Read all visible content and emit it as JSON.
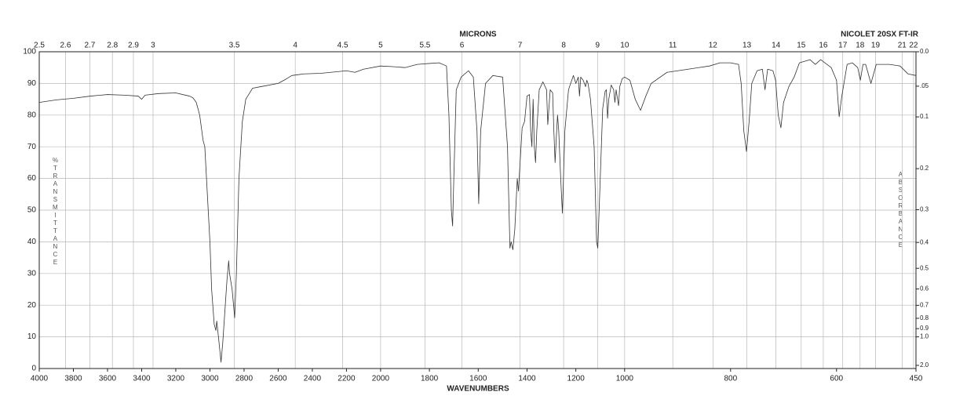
{
  "chart_data": {
    "type": "line",
    "title": "NICOLET 20SX FT-IR",
    "x_label": "WAVENUMBERS",
    "x2_label": "MICRONS",
    "y_label": "%TRANSMITTANCE",
    "y2_label": "ABSORBANCE",
    "color": "#333333",
    "grid": true,
    "xlim": [
      4000,
      450
    ],
    "x_scale_breaks": [
      2000,
      1000
    ],
    "xticks": [
      4000,
      3800,
      3600,
      3400,
      3200,
      3000,
      2800,
      2600,
      2400,
      2200,
      2000,
      1800,
      1600,
      1400,
      1200,
      1000,
      800,
      600,
      450
    ],
    "x2ticks": [
      2.5,
      2.6,
      2.7,
      2.8,
      2.9,
      3,
      3.5,
      4,
      4.5,
      5,
      5.5,
      6,
      7,
      8,
      9,
      10,
      11,
      12,
      13,
      14,
      15,
      16,
      17,
      18,
      19,
      21,
      22
    ],
    "x2_scale": "reciprocal",
    "ylim": [
      0,
      100
    ],
    "yticks": [
      0,
      10,
      20,
      30,
      40,
      50,
      60,
      70,
      80,
      90,
      100
    ],
    "y2_scale": "absorbance",
    "y2ticks": [
      {
        "value": 0,
        "label": "0.0"
      },
      {
        "value": 0.05,
        "label": ".05"
      },
      0.1,
      0.2,
      0.3,
      0.4,
      0.5,
      0.6,
      0.7,
      0.8,
      0.9,
      {
        "value": 1,
        "label": "1.0"
      },
      {
        "value": 2,
        "label": "2.0"
      }
    ],
    "x": [
      4000,
      3900,
      3800,
      3700,
      3600,
      3500,
      3420,
      3400,
      3380,
      3300,
      3200,
      3120,
      3100,
      3080,
      3060,
      3040,
      3030,
      3020,
      3000,
      2990,
      2975,
      2965,
      2960,
      2950,
      2935,
      2925,
      2910,
      2900,
      2890,
      2885,
      2870,
      2855,
      2845,
      2830,
      2810,
      2790,
      2750,
      2700,
      2600,
      2550,
      2520,
      2450,
      2350,
      2200,
      2150,
      2100,
      2000,
      1950,
      1900,
      1850,
      1800,
      1760,
      1730,
      1720,
      1710,
      1705,
      1700,
      1690,
      1670,
      1640,
      1620,
      1605,
      1598,
      1590,
      1570,
      1540,
      1500,
      1480,
      1470,
      1465,
      1458,
      1450,
      1440,
      1435,
      1430,
      1420,
      1410,
      1400,
      1390,
      1385,
      1380,
      1375,
      1370,
      1365,
      1360,
      1350,
      1335,
      1320,
      1315,
      1305,
      1295,
      1290,
      1285,
      1280,
      1275,
      1270,
      1262,
      1255,
      1245,
      1230,
      1210,
      1200,
      1190,
      1185,
      1180,
      1170,
      1160,
      1155,
      1150,
      1140,
      1125,
      1115,
      1110,
      1100,
      1090,
      1080,
      1075,
      1070,
      1065,
      1055,
      1045,
      1040,
      1035,
      1025,
      1020,
      1010,
      1000,
      990,
      980,
      970,
      960,
      950,
      920,
      880,
      840,
      820,
      800,
      785,
      780,
      775,
      770,
      765,
      760,
      750,
      740,
      735,
      730,
      720,
      715,
      710,
      705,
      700,
      690,
      680,
      670,
      650,
      640,
      630,
      610,
      600,
      595,
      590,
      580,
      570,
      560,
      555,
      550,
      545,
      540,
      535,
      525,
      500,
      480,
      465,
      450
    ],
    "values": [
      84,
      84.8,
      85.3,
      86,
      86.5,
      86.3,
      86,
      85,
      86.3,
      86.8,
      87,
      86,
      85.5,
      84,
      80,
      72,
      70,
      60,
      40,
      25,
      14,
      12,
      15,
      10,
      2,
      8,
      20,
      28,
      34,
      30,
      25,
      16,
      30,
      60,
      78,
      85,
      88.5,
      89,
      90,
      91.5,
      92.5,
      93,
      93.2,
      94,
      93.5,
      94.5,
      95.5,
      95.3,
      95,
      96,
      96.3,
      96.5,
      95.5,
      80,
      50,
      45,
      60,
      88,
      92,
      94,
      92,
      75,
      52,
      75,
      90,
      92.5,
      92,
      70,
      38,
      40,
      37.5,
      44,
      60,
      56,
      63,
      76,
      78,
      86,
      86.5,
      75,
      70,
      85,
      70,
      65,
      75,
      88,
      90.5,
      88,
      77,
      88,
      87,
      75,
      65,
      73,
      80,
      75,
      60,
      49,
      75,
      88,
      92.5,
      90,
      92,
      86,
      92,
      91,
      89,
      91,
      90,
      85,
      70,
      40,
      38,
      60,
      82,
      87.5,
      88,
      79,
      85,
      89.5,
      88,
      84,
      88,
      83,
      89,
      91.5,
      92,
      91,
      85,
      81.5,
      86,
      90,
      93.5,
      94.5,
      95.5,
      96.5,
      96.5,
      96,
      90,
      75,
      68.5,
      78,
      90,
      94,
      94.5,
      88,
      94.5,
      94,
      91,
      80,
      76,
      84,
      89,
      92,
      96.5,
      97.5,
      96,
      97.5,
      95,
      91,
      79.5,
      86,
      96,
      96.5,
      95,
      91,
      96,
      96,
      93,
      90,
      96,
      96,
      95.5,
      93,
      92.5
    ]
  }
}
